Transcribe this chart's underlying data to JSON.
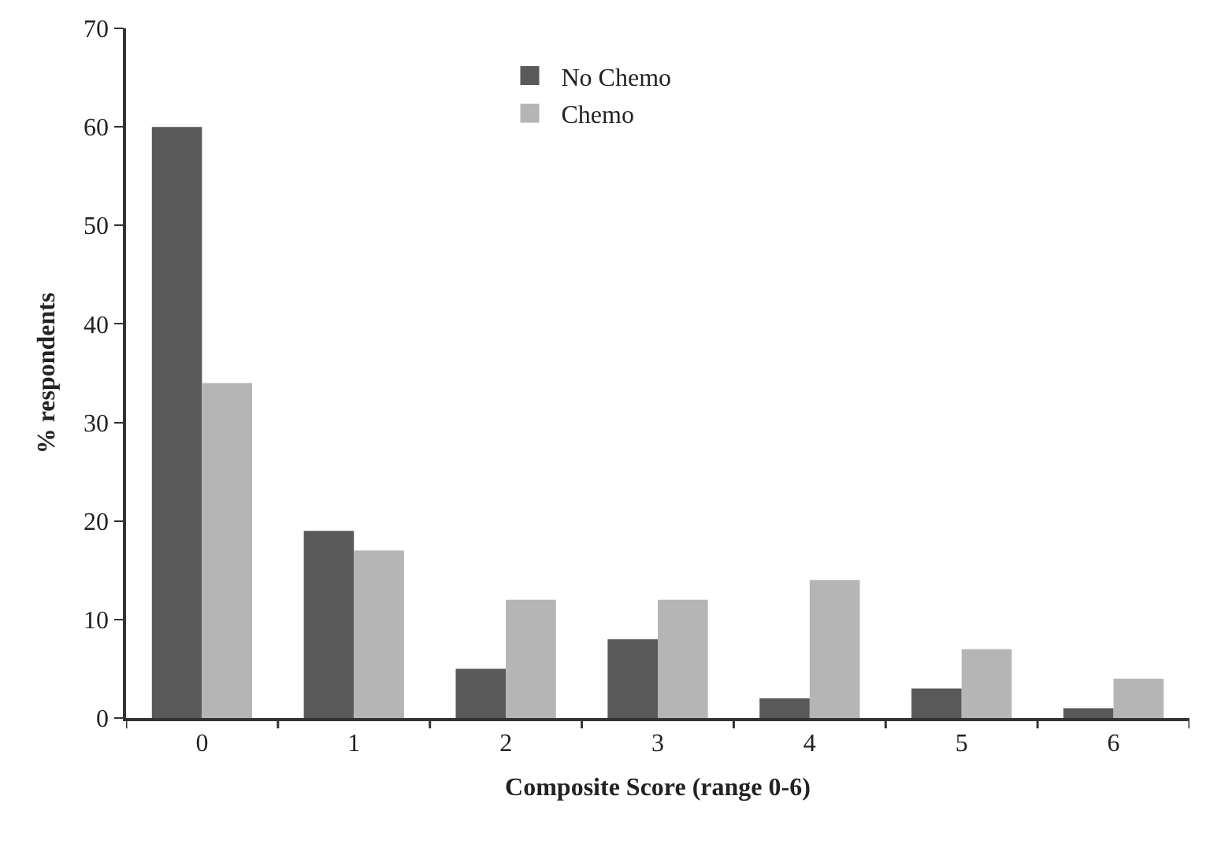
{
  "chart_data": {
    "type": "bar",
    "xlabel": "Composite Score (range 0-6)",
    "ylabel": "% respondents",
    "categories": [
      "0",
      "1",
      "2",
      "3",
      "4",
      "5",
      "6"
    ],
    "series": [
      {
        "name": "No Chemo",
        "color": "#595959",
        "values": [
          60,
          19,
          5,
          8,
          2,
          3,
          1
        ]
      },
      {
        "name": "Chemo",
        "color": "#b5b5b5",
        "values": [
          34,
          17,
          12,
          12,
          14,
          7,
          4
        ]
      }
    ],
    "ylim": [
      0,
      70
    ],
    "yticks": [
      0,
      10,
      20,
      30,
      40,
      50,
      60,
      70
    ],
    "grid": false,
    "legend": "top"
  }
}
